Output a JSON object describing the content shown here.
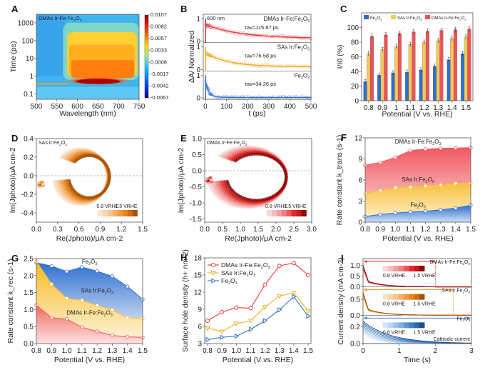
{
  "figure": {
    "panel_labels": [
      "A",
      "B",
      "C",
      "D",
      "E",
      "F",
      "G",
      "H",
      "I"
    ]
  },
  "chart_data": [
    {
      "id": "A",
      "type": "heatmap",
      "annotation": "DMAs Ir-Fe:Fe2O3",
      "xlabel": "Wavelength (nm)",
      "ylabel": "Time (ps)",
      "xlim": [
        500,
        750
      ],
      "ylim": [
        0.05,
        3000
      ],
      "yscale": "log",
      "xticks": [
        "500",
        "550",
        "600",
        "650",
        "700",
        "750"
      ],
      "yticks": [
        "0.1",
        "1",
        "10",
        "100",
        "1000"
      ],
      "colorbar_ticks": [
        "0.0107",
        "0.0082",
        "0.0057",
        "0.0033",
        "0.0008",
        "-0.0017",
        "-0.0042",
        "-0.0067"
      ],
      "features": [
        {
          "desc": "strong positive band",
          "wavelength_range": [
            570,
            740
          ],
          "time_range_ps": [
            0.3,
            1.0
          ],
          "peak": 0.0107
        },
        {
          "desc": "decaying positive region",
          "wavelength_range": [
            575,
            745
          ],
          "time_range_ps": [
            1,
            300
          ],
          "level": 0.005
        },
        {
          "desc": "negative/low background",
          "wavelength_range": [
            500,
            565
          ],
          "time_range_ps": [
            0.05,
            3000
          ],
          "level": -0.0017
        }
      ]
    },
    {
      "id": "B",
      "type": "line",
      "annotation": "600 nm",
      "xlabel": "t (ps)",
      "ylabel": "ΔA/ Normalized",
      "xlim": [
        -10,
        500
      ],
      "xticks": [
        "0",
        "100",
        "200",
        "300",
        "400",
        "500"
      ],
      "series": [
        {
          "name": "DMAs Ir-Fe:Fe2O3",
          "tau_label": "τav=115.87 ps",
          "tau_ps": 115.87,
          "color": "#e8343c",
          "yticks": [
            "0",
            "1"
          ]
        },
        {
          "name": "SAs Ir:Fe2O3",
          "tau_label": "τav=76.58 ps",
          "tau_ps": 76.58,
          "color": "#f0a820",
          "yticks": [
            "0",
            "1"
          ]
        },
        {
          "name": "Fe2O3",
          "tau_label": "τav=34.26 ps",
          "tau_ps": 34.26,
          "color": "#2f6fd0",
          "yticks": [
            "0",
            "1"
          ]
        }
      ]
    },
    {
      "id": "C",
      "type": "bar",
      "xlabel": "Potential (V vs. RHE)",
      "ylabel": "I/I0 (%)",
      "ylim": [
        0,
        120
      ],
      "yticks": [
        "0",
        "20",
        "40",
        "60",
        "80",
        "100"
      ],
      "categories": [
        "0.8",
        "0.9",
        "1",
        "1.1",
        "1.2",
        "1.3",
        "1.4",
        "1.5"
      ],
      "series": [
        {
          "name": "Fe2O3",
          "color": "#2f6fd0",
          "values": [
            26,
            35,
            38,
            39,
            42,
            47,
            56,
            64
          ]
        },
        {
          "name": "SAs Ir:Fe2O3",
          "color": "#f7c85a",
          "values": [
            64,
            70,
            74,
            77,
            80,
            82,
            85,
            87
          ]
        },
        {
          "name": "DMAs Ir-Fe:Fe2O3",
          "color": "#f0525a",
          "values": [
            88,
            90,
            92,
            94,
            95,
            96,
            97,
            98
          ]
        }
      ]
    },
    {
      "id": "D",
      "type": "scatter",
      "annotation": "SAs Ir:Fe2O3",
      "xlabel": "Re(Jphoto)/μA cm-2",
      "ylabel": "Im(Jphoto)/μA cm-2",
      "xlim": [
        0,
        1.5
      ],
      "ylim": [
        -0.5,
        0.4
      ],
      "xticks": [
        "0.0",
        "0.3",
        "0.6",
        "0.9",
        "1.2",
        "1.5"
      ],
      "yticks": [
        "-0.4",
        "-0.2",
        "0.0",
        "0.2",
        "0.4"
      ],
      "legend_low": "0.8 VRHE",
      "legend_high": "1.5 VRHE",
      "color_scale": [
        "#fbe3c8",
        "#f9d3ad",
        "#f7c28e",
        "#f4ae6c",
        "#f09a48",
        "#e8841f",
        "#d36c0c",
        "#a85408"
      ],
      "loop": {
        "center_re": 0.62,
        "center_im": -0.01,
        "radius_re": 0.38,
        "radius_im": 0.3
      }
    },
    {
      "id": "E",
      "type": "scatter",
      "annotation": "DMAs Ir-Fe:Fe2O3",
      "xlabel": "Re(Jphoto)/μA cm-2",
      "ylabel": "Im(Jphoto)/μA cm-2",
      "xlim": [
        0,
        3.0
      ],
      "ylim": [
        -1.6,
        1.0
      ],
      "xticks": [
        "0.0",
        "0.5",
        "1.0",
        "1.5",
        "2.0",
        "2.5",
        "3.0"
      ],
      "yticks": [
        "-1.5",
        "-1.0",
        "-0.5",
        "0.0",
        "0.5",
        "1.0"
      ],
      "legend_low": "0.8 VRHE",
      "legend_high": "1.5 VRHE",
      "color_scale": [
        "#fbd6d6",
        "#f8bcbc",
        "#f4a0a0",
        "#ee8080",
        "#e85a5a",
        "#e02a2a",
        "#c81818",
        "#8c0c0c"
      ],
      "loop": {
        "center_re": 1.2,
        "center_im": -0.2,
        "radius_re": 1.1,
        "radius_im": 0.95
      }
    },
    {
      "id": "F",
      "type": "area",
      "xlabel": "Potential (V vs. RHE)",
      "ylabel": "Rate constant k_trans (s-1)",
      "xlim": [
        0.8,
        1.5
      ],
      "ylim": [
        0,
        12
      ],
      "x": [
        0.8,
        0.9,
        1.0,
        1.1,
        1.2,
        1.3,
        1.4,
        1.5
      ],
      "xticks": [
        "0.8",
        "0.9",
        "1.0",
        "1.1",
        "1.2",
        "1.3",
        "1.4",
        "1.5"
      ],
      "yticks": [
        "0",
        "3",
        "6",
        "9",
        "12"
      ],
      "series": [
        {
          "name": "DMAs Ir-Fe:Fe2O3",
          "color": "#f0525a",
          "values": [
            8.1,
            8.5,
            9.2,
            10.2,
            10.4,
            10.5,
            10.55,
            10.6
          ]
        },
        {
          "name": "SAs Ir:Fe2O3",
          "color": "#f5c040",
          "values": [
            4.1,
            4.5,
            4.9,
            5.0,
            5.15,
            5.3,
            5.5,
            5.55
          ]
        },
        {
          "name": "Fe2O3",
          "color": "#2f6fd0",
          "values": [
            0.8,
            1.1,
            1.3,
            1.45,
            1.55,
            1.75,
            2.0,
            2.4
          ]
        }
      ]
    },
    {
      "id": "G",
      "type": "area",
      "xlabel": "Potential (V vs. RHE)",
      "ylabel": "Rate constant k_rec (s-1)",
      "xlim": [
        0.8,
        1.5
      ],
      "ylim": [
        0,
        2.5
      ],
      "x": [
        0.8,
        0.9,
        1.0,
        1.1,
        1.2,
        1.3,
        1.4,
        1.5
      ],
      "xticks": [
        "0.8",
        "0.9",
        "1.0",
        "1.1",
        "1.2",
        "1.3",
        "1.4",
        "1.5"
      ],
      "yticks": [
        "0.0",
        "0.5",
        "1.0",
        "1.5",
        "2.0",
        "2.5"
      ],
      "series": [
        {
          "name": "Fe2O3",
          "color": "#2f6fd0",
          "values": [
            2.38,
            2.28,
            2.12,
            2.25,
            2.13,
            1.98,
            1.68,
            1.3
          ]
        },
        {
          "name": "SAs Ir:Fe2O3",
          "color": "#f5c040",
          "values": [
            2.42,
            1.75,
            1.33,
            1.27,
            1.12,
            0.99,
            0.76,
            0.74
          ]
        },
        {
          "name": "DMAs Ir-Fe:Fe2O3",
          "color": "#f0525a",
          "values": [
            1.13,
            0.76,
            0.72,
            0.48,
            0.36,
            0.24,
            0.2,
            0.18
          ]
        }
      ]
    },
    {
      "id": "H",
      "type": "line",
      "xlabel": "Potential (V vs. RHE)",
      "ylabel": "Surface hole density (h+ nm-2)",
      "xlim": [
        0.78,
        1.52
      ],
      "ylim": [
        3,
        18
      ],
      "x": [
        0.8,
        0.9,
        1.0,
        1.1,
        1.2,
        1.3,
        1.4,
        1.5
      ],
      "xticks": [
        "0.8",
        "0.9",
        "1.0",
        "1.1",
        "1.2",
        "1.3",
        "1.4",
        "1.5"
      ],
      "yticks": [
        "3",
        "6",
        "9",
        "12",
        "15",
        "18"
      ],
      "legend": "top-left",
      "series": [
        {
          "name": "DMAs Ir-Fe:Fe2O3",
          "color": "#ee3b3b",
          "marker": "circle",
          "values": [
            7.0,
            8.5,
            9.3,
            9.2,
            13.3,
            16.6,
            17.1,
            15.0
          ]
        },
        {
          "name": "SAs Ir:Fe2O3",
          "color": "#f0b020",
          "marker": "triangle-down",
          "values": [
            5.7,
            5.1,
            6.5,
            7.0,
            9.4,
            11.3,
            11.9,
            8.7
          ]
        },
        {
          "name": "Fe2O3",
          "color": "#2f78c4",
          "marker": "triangle-right",
          "values": [
            3.7,
            4.1,
            4.3,
            5.5,
            7.0,
            8.9,
            11.2,
            7.8
          ]
        }
      ]
    },
    {
      "id": "I",
      "type": "line",
      "xlabel": "Time (s)",
      "ylabel": "Current density (mA cm-2)",
      "xlim": [
        0,
        3
      ],
      "xticks": [
        "0",
        "1",
        "2",
        "3"
      ],
      "legend_low": "0.8 VRHE",
      "legend_high": "1.5 VRHE",
      "annotation_bottom": "Cathodic current",
      "series": [
        {
          "name": "DMAs Ir-Fe:Fe2O3",
          "color": "#e02a2a",
          "yticks": [
            "0.0",
            "0.5",
            "1.0"
          ],
          "ymax": 1.25,
          "peak": 1.0,
          "arrow_end_s": 2.0,
          "color_scale": [
            "#fbd6d6",
            "#f8bcbc",
            "#f4a0a0",
            "#ee8080",
            "#e85a5a",
            "#e02a2a",
            "#c81818",
            "#8c0c0c"
          ]
        },
        {
          "name": "SAs Ir:Fe2O3",
          "color": "#f08010",
          "yticks": [
            "0.0",
            "0.5"
          ],
          "ymax": 0.85,
          "peak": 0.72,
          "arrow_end_s": 2.5,
          "color_scale": [
            "#fbe3c8",
            "#f9d3ad",
            "#f7c28e",
            "#f4ae6c",
            "#f09a48",
            "#e8841f",
            "#d36c0c",
            "#a85408"
          ]
        },
        {
          "name": "Fe2O3",
          "color": "#2f6fd0",
          "yticks": [
            "0.0",
            "0.2"
          ],
          "ymax": 0.32,
          "peak": 0.28,
          "arrow_end_s": 3.0,
          "color_scale": [
            "#d6e6f6",
            "#bcd6f0",
            "#9ec3e8",
            "#7eaedf",
            "#5a96d2",
            "#3f7fc2",
            "#2a68aa",
            "#1a4e86"
          ]
        }
      ]
    }
  ]
}
